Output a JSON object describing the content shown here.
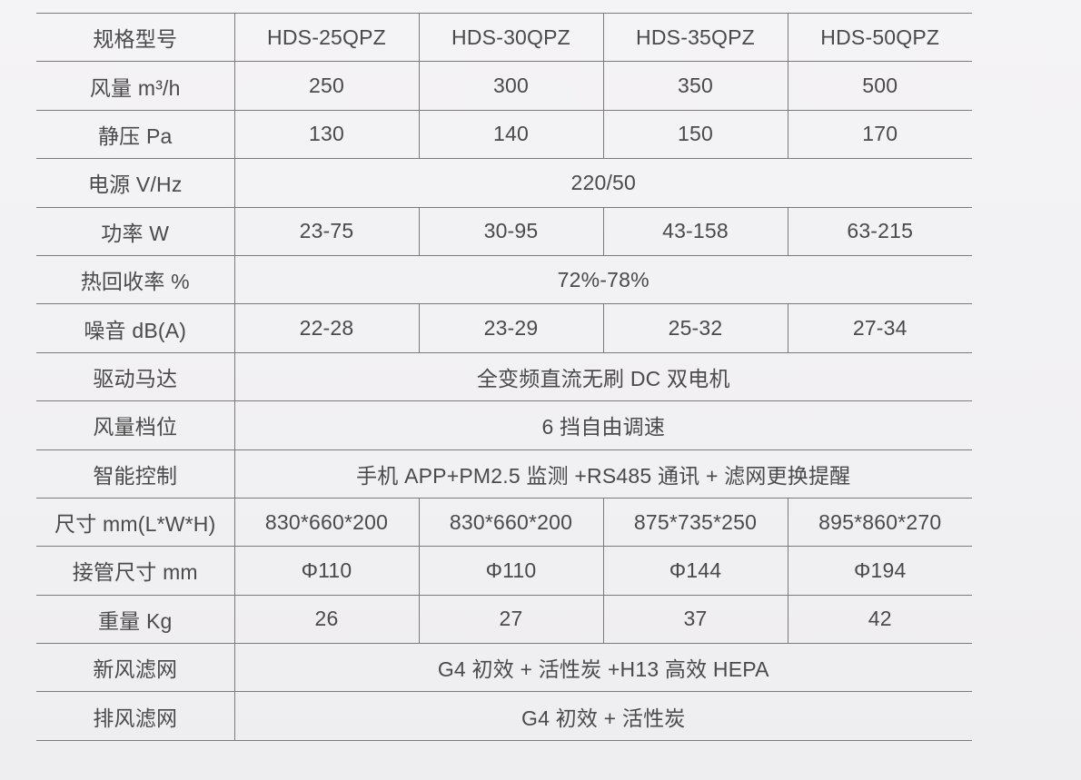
{
  "spec_table": {
    "rows": [
      {
        "label": "规格型号",
        "values": [
          "HDS-25QPZ",
          "HDS-30QPZ",
          "HDS-35QPZ",
          "HDS-50QPZ"
        ]
      },
      {
        "label": "风量 m³/h",
        "values": [
          "250",
          "300",
          "350",
          "500"
        ]
      },
      {
        "label": "静压 Pa",
        "values": [
          "130",
          "140",
          "150",
          "170"
        ]
      },
      {
        "label": "电源 V/Hz",
        "values": [
          "220/50"
        ]
      },
      {
        "label": "功率 W",
        "values": [
          "23-75",
          "30-95",
          "43-158",
          "63-215"
        ]
      },
      {
        "label": "热回收率 %",
        "values": [
          "72%-78%"
        ]
      },
      {
        "label": "噪音  dB(A)",
        "values": [
          "22-28",
          "23-29",
          "25-32",
          "27-34"
        ]
      },
      {
        "label": "驱动马达",
        "values": [
          "全变频直流无刷 DC 双电机"
        ]
      },
      {
        "label": "风量档位",
        "values": [
          "6 挡自由调速"
        ]
      },
      {
        "label": "智能控制",
        "values": [
          "手机 APP+PM2.5 监测 +RS485 通讯 + 滤网更换提醒"
        ]
      },
      {
        "label": "尺寸 mm(L*W*H)",
        "values": [
          "830*660*200",
          "830*660*200",
          "875*735*250",
          "895*860*270"
        ]
      },
      {
        "label": "接管尺寸 mm",
        "values": [
          "Φ110",
          "Φ110",
          "Φ144",
          "Φ194"
        ]
      },
      {
        "label": "重量 Kg",
        "values": [
          "26",
          "27",
          "37",
          "42"
        ]
      },
      {
        "label": "新风滤网",
        "values": [
          "G4 初效 + 活性炭 +H13 高效 HEPA"
        ]
      },
      {
        "label": "排风滤网",
        "values": [
          "G4 初效 + 活性炭"
        ]
      }
    ]
  }
}
